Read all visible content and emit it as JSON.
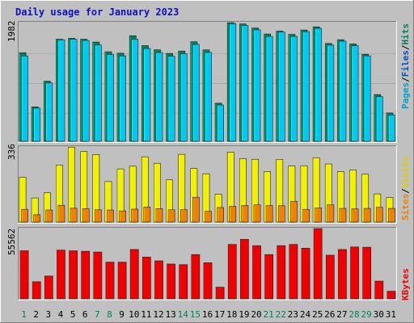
{
  "chart_data": {
    "type": "bar",
    "title": "Daily usage for January 2023",
    "categories": [
      "1",
      "2",
      "3",
      "4",
      "5",
      "6",
      "7",
      "8",
      "9",
      "10",
      "11",
      "12",
      "13",
      "14",
      "15",
      "16",
      "17",
      "18",
      "19",
      "20",
      "21",
      "22",
      "23",
      "24",
      "25",
      "26",
      "27",
      "28",
      "29",
      "30",
      "31"
    ],
    "weekend_categories": [
      "1",
      "7",
      "8",
      "14",
      "15",
      "21",
      "22",
      "28",
      "29"
    ],
    "panels": [
      {
        "ymax": 1982,
        "ymax_label": "1982",
        "series": [
          {
            "name": "Hits",
            "color": "#00805c",
            "values": [
              1480,
              575,
              1005,
              1705,
              1720,
              1705,
              1658,
              1495,
              1472,
              1763,
              1598,
              1528,
              1468,
              1507,
              1663,
              1527,
              637,
              1982,
              1960,
              1892,
              1792,
              1840,
              1786,
              1859,
              1912,
              1635,
              1697,
              1627,
              1454,
              781,
              474
            ]
          },
          {
            "name": "Files",
            "color": "#00c8f0",
            "values": [
              1425,
              555,
              975,
              1695,
              1705,
              1685,
              1610,
              1450,
              1427,
              1705,
              1550,
              1483,
              1422,
              1462,
              1618,
              1485,
              607,
              1965,
              1935,
              1862,
              1752,
              1826,
              1752,
              1831,
              1887,
              1606,
              1672,
              1597,
              1427,
              746,
              440
            ]
          },
          {
            "name": "Pages",
            "color": "#00a0d0",
            "values": []
          }
        ]
      },
      {
        "ymax": 336,
        "ymax_label": "336",
        "series": [
          {
            "name": "Visits",
            "color": "#f0f000",
            "values": [
              200,
              108,
              131,
              255,
              335,
              316,
              302,
              181,
              238,
              250,
              292,
              263,
              189,
              303,
              240,
              216,
              125,
              313,
              284,
              281,
              226,
              280,
              251,
              252,
              288,
              260,
              226,
              233,
              214,
              126,
              110
            ]
          },
          {
            "name": "Sites",
            "color": "#f08000",
            "values": [
              57,
              33,
              54,
              75,
              62,
              60,
              55,
              54,
              50,
              58,
              67,
              60,
              55,
              56,
              111,
              48,
              65,
              71,
              74,
              77,
              74,
              73,
              93,
              57,
              63,
              77,
              61,
              59,
              61,
              66,
              61
            ]
          }
        ]
      },
      {
        "ymax": 55562,
        "ymax_label": "55562",
        "series": [
          {
            "name": "KBytes",
            "color": "#f00000",
            "values": [
              38000,
              13500,
              18000,
              38500,
              38000,
              37600,
              37000,
              29000,
              29000,
              39000,
              33000,
              30000,
              27500,
              27000,
              35000,
              28500,
              9200,
              43000,
              47000,
              42000,
              35000,
              42000,
              43000,
              40000,
              56000,
              34500,
              39000,
              41000,
              40800,
              14000,
              6000
            ]
          }
        ]
      }
    ]
  }
}
